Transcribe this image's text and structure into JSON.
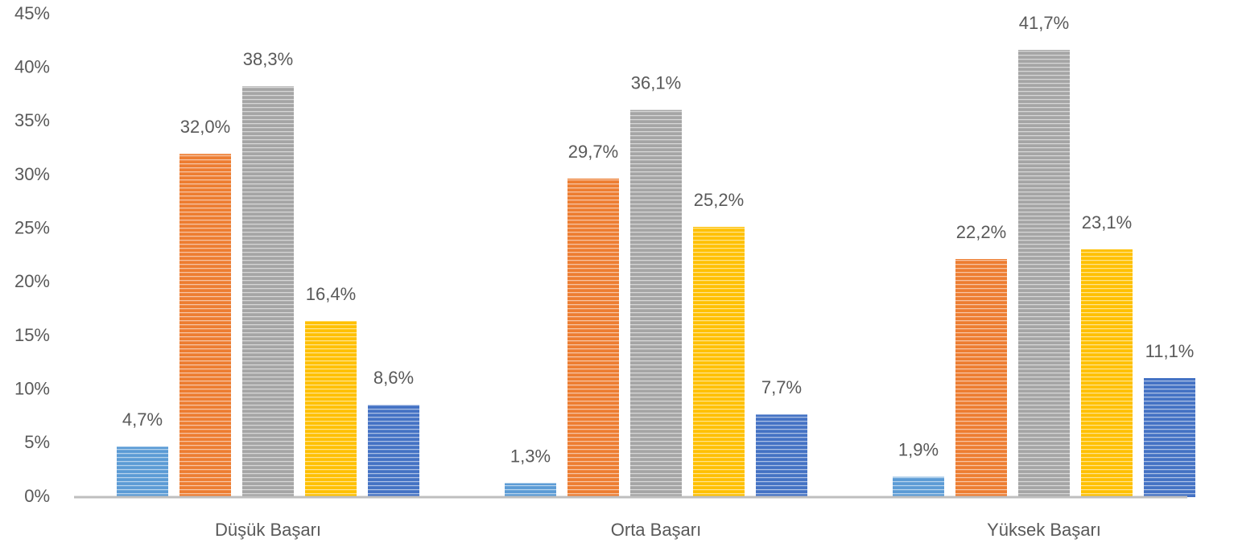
{
  "chart_data": {
    "type": "bar",
    "categories": [
      "Düşük Başarı",
      "Orta Başarı",
      "Yüksek Başarı"
    ],
    "series": [
      {
        "color": "#5b9bd5",
        "values": [
          4.7,
          1.3,
          1.9
        ],
        "value_labels": [
          "4,7%",
          "1,3%",
          "1,9%"
        ]
      },
      {
        "color": "#ed7d31",
        "values": [
          32.0,
          29.7,
          22.2
        ],
        "value_labels": [
          "32,0%",
          "29,7%",
          "22,2%"
        ]
      },
      {
        "color": "#a5a5a5",
        "values": [
          38.3,
          36.1,
          41.7
        ],
        "value_labels": [
          "38,3%",
          "36,1%",
          "41,7%"
        ]
      },
      {
        "color": "#ffc000",
        "values": [
          16.4,
          25.2,
          23.1
        ],
        "value_labels": [
          "16,4%",
          "25,2%",
          "23,1%"
        ]
      },
      {
        "color": "#4472c4",
        "values": [
          8.6,
          7.7,
          11.1
        ],
        "value_labels": [
          "8,6%",
          "7,7%",
          "11,1%"
        ]
      }
    ],
    "ylim": [
      0,
      45
    ],
    "yticks": [
      {
        "value": 0,
        "label": "0%"
      },
      {
        "value": 5,
        "label": "5%"
      },
      {
        "value": 10,
        "label": "10%"
      },
      {
        "value": 15,
        "label": "15%"
      },
      {
        "value": 20,
        "label": "20%"
      },
      {
        "value": 25,
        "label": "25%"
      },
      {
        "value": 30,
        "label": "30%"
      },
      {
        "value": 35,
        "label": "35%"
      },
      {
        "value": 40,
        "label": "40%"
      },
      {
        "value": 45,
        "label": "45%"
      }
    ],
    "grid": false
  }
}
